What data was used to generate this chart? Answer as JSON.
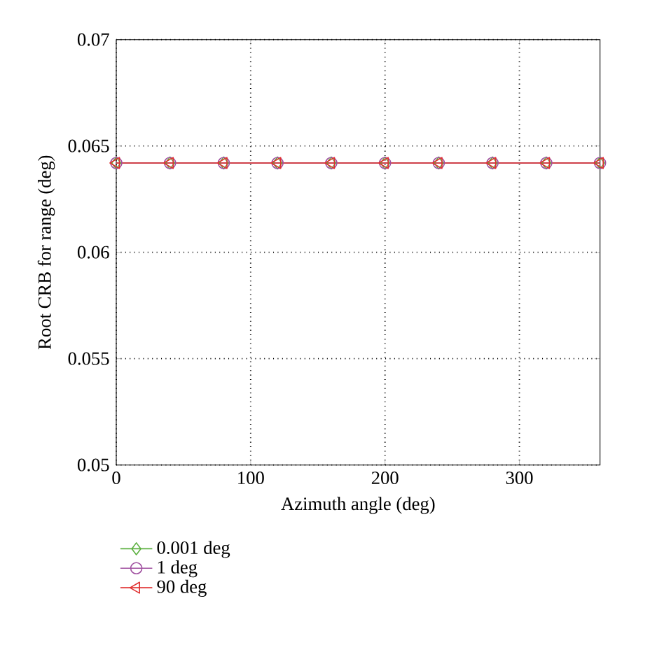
{
  "chart_data": {
    "type": "line",
    "xlabel": "Azimuth angle (deg)",
    "ylabel": "Root CRB for range (deg)",
    "x": [
      0,
      40,
      80,
      120,
      160,
      200,
      240,
      280,
      320,
      360
    ],
    "series": [
      {
        "name": "0.001 deg",
        "color": "#5cb040",
        "marker": "diamond",
        "values": [
          0.0642,
          0.0642,
          0.0642,
          0.0642,
          0.0642,
          0.0642,
          0.0642,
          0.0642,
          0.0642,
          0.0642
        ]
      },
      {
        "name": "1 deg",
        "color": "#a050a0",
        "marker": "circle",
        "values": [
          0.0642,
          0.0642,
          0.0642,
          0.0642,
          0.0642,
          0.0642,
          0.0642,
          0.0642,
          0.0642,
          0.0642
        ]
      },
      {
        "name": "90 deg",
        "color": "#e03030",
        "marker": "triangle",
        "values": [
          0.0642,
          0.0642,
          0.0642,
          0.0642,
          0.0642,
          0.0642,
          0.0642,
          0.0642,
          0.0642,
          0.0642
        ]
      }
    ],
    "xlim": [
      0,
      360
    ],
    "xticks": [
      0,
      100,
      200,
      300
    ],
    "ylim": [
      0.05,
      0.07
    ],
    "yticks": [
      0.05,
      0.055,
      0.06,
      0.065,
      0.07
    ],
    "grid": true,
    "legend": "bottom left",
    "line_style": "solid"
  }
}
